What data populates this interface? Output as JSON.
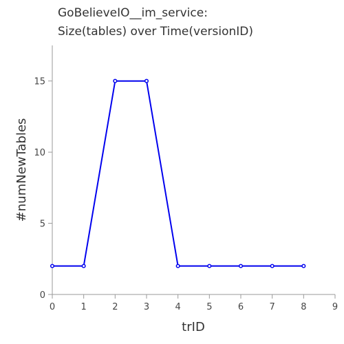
{
  "chart_data": {
    "type": "line",
    "title_lines": [
      "GoBelieveIO__im_service:",
      "Size(tables) over Time(versionID)"
    ],
    "xlabel": "trID",
    "ylabel": "#numNewTables",
    "xlim": [
      0,
      9
    ],
    "ylim": [
      0,
      17.5
    ],
    "x_ticks": [
      0,
      1,
      2,
      3,
      4,
      5,
      6,
      7,
      8,
      9
    ],
    "y_ticks": [
      0,
      5,
      10,
      15
    ],
    "grid": false,
    "series": [
      {
        "x": [
          0,
          1,
          2,
          3,
          4,
          5,
          6,
          7,
          8
        ],
        "values": [
          2,
          2,
          15,
          15,
          2,
          2,
          2,
          2,
          2
        ],
        "color": "#0000ee"
      }
    ]
  }
}
